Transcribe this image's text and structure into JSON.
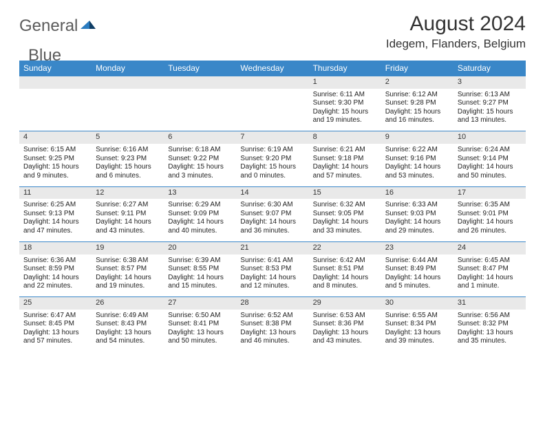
{
  "brand": {
    "word1": "General",
    "word2": "Blue"
  },
  "title": "August 2024",
  "location": "Idegem, Flanders, Belgium",
  "colors": {
    "header_blue": "#3a87c8",
    "row_gray": "#e9e9e9",
    "border_blue": "#3a87c8",
    "logo_gray": "#5a5a5a",
    "logo_blue": "#2b7cc0"
  },
  "dayHeaders": [
    "Sunday",
    "Monday",
    "Tuesday",
    "Wednesday",
    "Thursday",
    "Friday",
    "Saturday"
  ],
  "weeks": [
    [
      null,
      null,
      null,
      null,
      {
        "n": "1",
        "sr": "Sunrise: 6:11 AM",
        "ss": "Sunset: 9:30 PM",
        "dl": "Daylight: 15 hours and 19 minutes."
      },
      {
        "n": "2",
        "sr": "Sunrise: 6:12 AM",
        "ss": "Sunset: 9:28 PM",
        "dl": "Daylight: 15 hours and 16 minutes."
      },
      {
        "n": "3",
        "sr": "Sunrise: 6:13 AM",
        "ss": "Sunset: 9:27 PM",
        "dl": "Daylight: 15 hours and 13 minutes."
      }
    ],
    [
      {
        "n": "4",
        "sr": "Sunrise: 6:15 AM",
        "ss": "Sunset: 9:25 PM",
        "dl": "Daylight: 15 hours and 9 minutes."
      },
      {
        "n": "5",
        "sr": "Sunrise: 6:16 AM",
        "ss": "Sunset: 9:23 PM",
        "dl": "Daylight: 15 hours and 6 minutes."
      },
      {
        "n": "6",
        "sr": "Sunrise: 6:18 AM",
        "ss": "Sunset: 9:22 PM",
        "dl": "Daylight: 15 hours and 3 minutes."
      },
      {
        "n": "7",
        "sr": "Sunrise: 6:19 AM",
        "ss": "Sunset: 9:20 PM",
        "dl": "Daylight: 15 hours and 0 minutes."
      },
      {
        "n": "8",
        "sr": "Sunrise: 6:21 AM",
        "ss": "Sunset: 9:18 PM",
        "dl": "Daylight: 14 hours and 57 minutes."
      },
      {
        "n": "9",
        "sr": "Sunrise: 6:22 AM",
        "ss": "Sunset: 9:16 PM",
        "dl": "Daylight: 14 hours and 53 minutes."
      },
      {
        "n": "10",
        "sr": "Sunrise: 6:24 AM",
        "ss": "Sunset: 9:14 PM",
        "dl": "Daylight: 14 hours and 50 minutes."
      }
    ],
    [
      {
        "n": "11",
        "sr": "Sunrise: 6:25 AM",
        "ss": "Sunset: 9:13 PM",
        "dl": "Daylight: 14 hours and 47 minutes."
      },
      {
        "n": "12",
        "sr": "Sunrise: 6:27 AM",
        "ss": "Sunset: 9:11 PM",
        "dl": "Daylight: 14 hours and 43 minutes."
      },
      {
        "n": "13",
        "sr": "Sunrise: 6:29 AM",
        "ss": "Sunset: 9:09 PM",
        "dl": "Daylight: 14 hours and 40 minutes."
      },
      {
        "n": "14",
        "sr": "Sunrise: 6:30 AM",
        "ss": "Sunset: 9:07 PM",
        "dl": "Daylight: 14 hours and 36 minutes."
      },
      {
        "n": "15",
        "sr": "Sunrise: 6:32 AM",
        "ss": "Sunset: 9:05 PM",
        "dl": "Daylight: 14 hours and 33 minutes."
      },
      {
        "n": "16",
        "sr": "Sunrise: 6:33 AM",
        "ss": "Sunset: 9:03 PM",
        "dl": "Daylight: 14 hours and 29 minutes."
      },
      {
        "n": "17",
        "sr": "Sunrise: 6:35 AM",
        "ss": "Sunset: 9:01 PM",
        "dl": "Daylight: 14 hours and 26 minutes."
      }
    ],
    [
      {
        "n": "18",
        "sr": "Sunrise: 6:36 AM",
        "ss": "Sunset: 8:59 PM",
        "dl": "Daylight: 14 hours and 22 minutes."
      },
      {
        "n": "19",
        "sr": "Sunrise: 6:38 AM",
        "ss": "Sunset: 8:57 PM",
        "dl": "Daylight: 14 hours and 19 minutes."
      },
      {
        "n": "20",
        "sr": "Sunrise: 6:39 AM",
        "ss": "Sunset: 8:55 PM",
        "dl": "Daylight: 14 hours and 15 minutes."
      },
      {
        "n": "21",
        "sr": "Sunrise: 6:41 AM",
        "ss": "Sunset: 8:53 PM",
        "dl": "Daylight: 14 hours and 12 minutes."
      },
      {
        "n": "22",
        "sr": "Sunrise: 6:42 AM",
        "ss": "Sunset: 8:51 PM",
        "dl": "Daylight: 14 hours and 8 minutes."
      },
      {
        "n": "23",
        "sr": "Sunrise: 6:44 AM",
        "ss": "Sunset: 8:49 PM",
        "dl": "Daylight: 14 hours and 5 minutes."
      },
      {
        "n": "24",
        "sr": "Sunrise: 6:45 AM",
        "ss": "Sunset: 8:47 PM",
        "dl": "Daylight: 14 hours and 1 minute."
      }
    ],
    [
      {
        "n": "25",
        "sr": "Sunrise: 6:47 AM",
        "ss": "Sunset: 8:45 PM",
        "dl": "Daylight: 13 hours and 57 minutes."
      },
      {
        "n": "26",
        "sr": "Sunrise: 6:49 AM",
        "ss": "Sunset: 8:43 PM",
        "dl": "Daylight: 13 hours and 54 minutes."
      },
      {
        "n": "27",
        "sr": "Sunrise: 6:50 AM",
        "ss": "Sunset: 8:41 PM",
        "dl": "Daylight: 13 hours and 50 minutes."
      },
      {
        "n": "28",
        "sr": "Sunrise: 6:52 AM",
        "ss": "Sunset: 8:38 PM",
        "dl": "Daylight: 13 hours and 46 minutes."
      },
      {
        "n": "29",
        "sr": "Sunrise: 6:53 AM",
        "ss": "Sunset: 8:36 PM",
        "dl": "Daylight: 13 hours and 43 minutes."
      },
      {
        "n": "30",
        "sr": "Sunrise: 6:55 AM",
        "ss": "Sunset: 8:34 PM",
        "dl": "Daylight: 13 hours and 39 minutes."
      },
      {
        "n": "31",
        "sr": "Sunrise: 6:56 AM",
        "ss": "Sunset: 8:32 PM",
        "dl": "Daylight: 13 hours and 35 minutes."
      }
    ]
  ]
}
